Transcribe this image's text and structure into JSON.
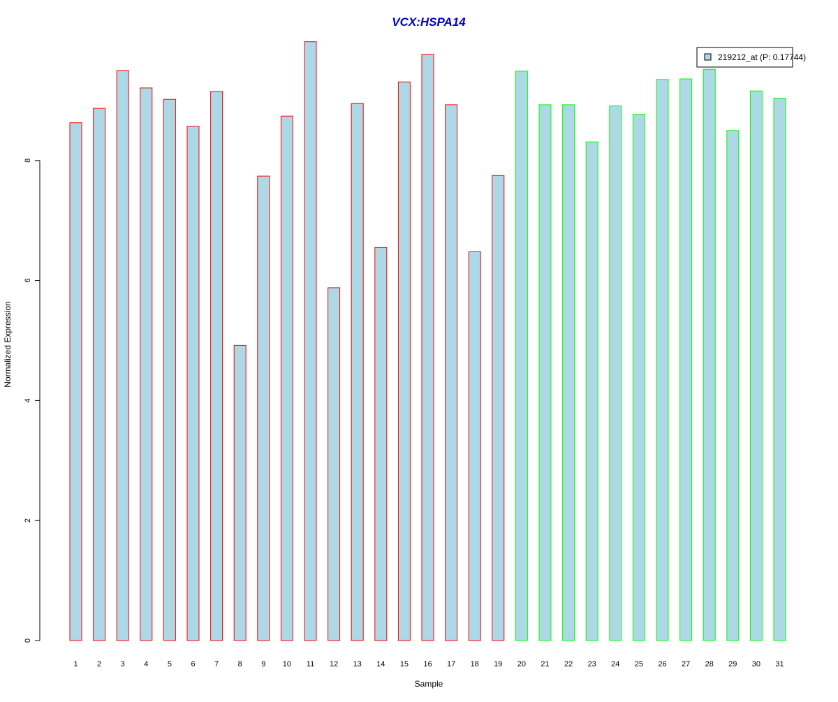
{
  "chart_data": {
    "type": "bar",
    "title": "VCX:HSPA14",
    "xlabel": "Sample",
    "ylabel": "Normalized Expression",
    "ylim": [
      0,
      10
    ],
    "yticks": [
      0,
      2,
      4,
      6,
      8
    ],
    "legend_position": "top-right",
    "categories": [
      "1",
      "2",
      "3",
      "4",
      "5",
      "6",
      "7",
      "8",
      "9",
      "10",
      "11",
      "12",
      "13",
      "14",
      "15",
      "16",
      "17",
      "18",
      "19",
      "20",
      "21",
      "22",
      "23",
      "24",
      "25",
      "26",
      "27",
      "28",
      "29",
      "30",
      "31"
    ],
    "series": [
      {
        "name": "219212_at (P: 0.17744)",
        "values": [
          8.63,
          8.87,
          9.5,
          9.21,
          9.02,
          8.57,
          9.15,
          4.92,
          7.74,
          8.74,
          9.98,
          5.88,
          8.95,
          6.55,
          9.31,
          9.77,
          8.93,
          6.48,
          7.75,
          9.49,
          8.93,
          8.93,
          8.31,
          8.91,
          8.77,
          9.35,
          9.36,
          9.52,
          8.5,
          9.16,
          9.04
        ],
        "fill_color": "#add8e6",
        "border_colors": [
          "#ff0000",
          "#ff0000",
          "#ff0000",
          "#ff0000",
          "#ff0000",
          "#ff0000",
          "#ff0000",
          "#ff0000",
          "#ff0000",
          "#ff0000",
          "#ff0000",
          "#ff0000",
          "#ff0000",
          "#ff0000",
          "#ff0000",
          "#ff0000",
          "#ff0000",
          "#ff0000",
          "#ff0000",
          "#00ff00",
          "#00ff00",
          "#00ff00",
          "#00ff00",
          "#00ff00",
          "#00ff00",
          "#00ff00",
          "#00ff00",
          "#00ff00",
          "#00ff00",
          "#00ff00",
          "#00ff00"
        ]
      }
    ],
    "colors": {
      "title": "#0000cd",
      "axis": "#000000",
      "legend_border": "#000000",
      "legend_fill": "#add8e6"
    }
  }
}
